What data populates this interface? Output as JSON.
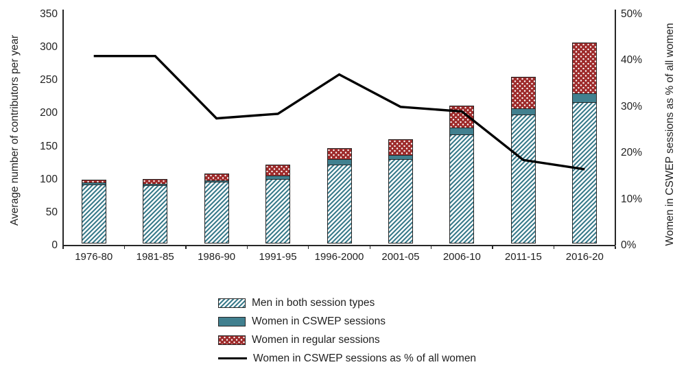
{
  "chart_data": {
    "type": "bar",
    "subtype": "stacked-bars-with-line-overlay",
    "title": "",
    "categories": [
      "1976-80",
      "1981-85",
      "1986-90",
      "1991-95",
      "1996-2000",
      "2001-05",
      "2006-10",
      "2011-15",
      "2016-20"
    ],
    "series": [
      {
        "name": "Men in both session types",
        "type": "bar",
        "axis": "left",
        "fill": "hatch",
        "values": [
          90,
          89,
          94,
          98,
          120,
          128,
          165,
          195,
          214
        ]
      },
      {
        "name": "Women in CSWEP sessions",
        "type": "bar",
        "axis": "left",
        "fill": "solid",
        "values": [
          4,
          3,
          3,
          6,
          9,
          8,
          12,
          11,
          15
        ]
      },
      {
        "name": "Women in regular sessions",
        "type": "bar",
        "axis": "left",
        "fill": "dots",
        "values": [
          6,
          9,
          12,
          19,
          18,
          25,
          35,
          50,
          78
        ]
      },
      {
        "name": "Women in CSWEP sessions as % of all women",
        "type": "line",
        "axis": "right",
        "values": [
          41,
          41,
          27.5,
          28.5,
          37,
          30,
          29,
          18.5,
          16.5
        ]
      }
    ],
    "stacked_totals": [
      100,
      101,
      109,
      123,
      147,
      161,
      212,
      256,
      307
    ],
    "left_axis": {
      "label": "Average number of contributors per year",
      "min": 0,
      "max": 350,
      "ticks": [
        0,
        50,
        100,
        150,
        200,
        250,
        300,
        350
      ]
    },
    "right_axis": {
      "label": "Women in CSWEP sessions as % of all women",
      "min": 0,
      "max": 50,
      "ticks": [
        "0%",
        "10%",
        "20%",
        "30%",
        "40%",
        "50%"
      ],
      "tick_values": [
        0,
        10,
        20,
        30,
        40,
        50
      ]
    },
    "grid": false,
    "legend_position": "bottom-center"
  },
  "colors": {
    "teal_solid": "#41808f",
    "teal_hatch": "#3a7b8b",
    "red_dots": "#9e2b2b",
    "line": "#000000",
    "axis": "#262626",
    "text": "#1f1f1f",
    "background": "#ffffff"
  }
}
